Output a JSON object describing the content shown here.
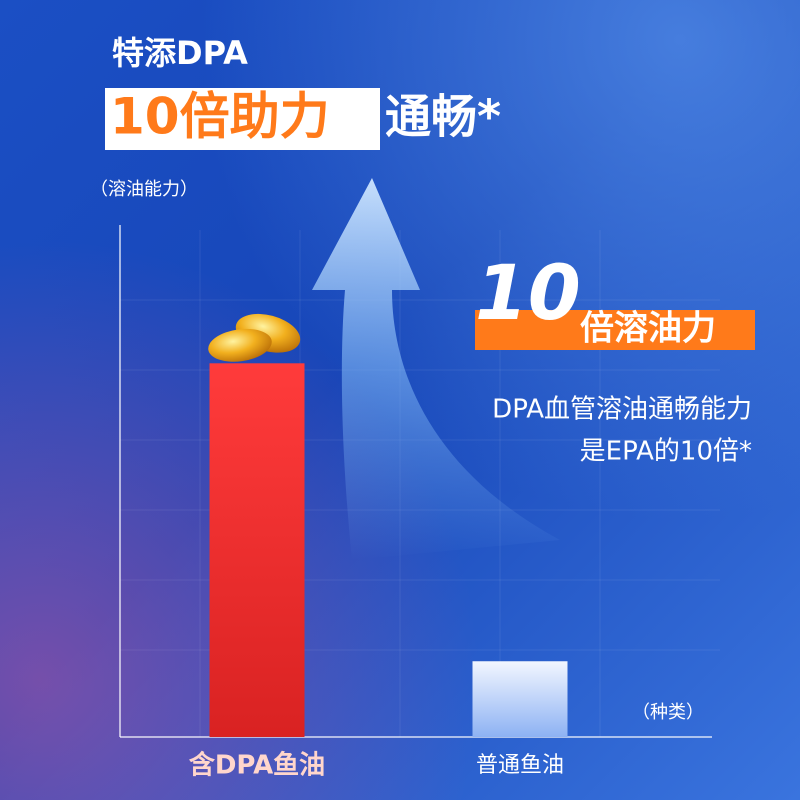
{
  "chart_data": {
    "type": "bar",
    "title": "特添DPA",
    "headline": "10倍助力",
    "headline_suffix": "通畅*",
    "y_label": "（溶油能力）",
    "x_label": "（种类）",
    "callout": {
      "number": "10",
      "text": "倍溶油力",
      "lines": [
        "DPA血管溶油通畅能力",
        "是EPA的10倍*"
      ]
    },
    "categories": [
      "含DPA鱼油",
      "普通鱼油"
    ],
    "values": [
      74,
      15
    ],
    "colors": [
      "#e8302f",
      "#dbe7fb"
    ],
    "ylim": [
      0,
      100
    ]
  }
}
